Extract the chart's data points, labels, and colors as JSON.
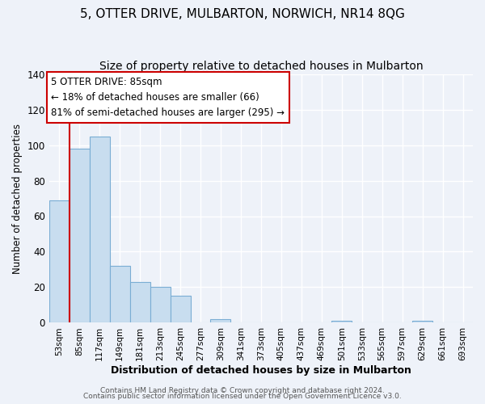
{
  "title": "5, OTTER DRIVE, MULBARTON, NORWICH, NR14 8QG",
  "subtitle": "Size of property relative to detached houses in Mulbarton",
  "xlabel": "Distribution of detached houses by size in Mulbarton",
  "ylabel": "Number of detached properties",
  "categories": [
    "53sqm",
    "85sqm",
    "117sqm",
    "149sqm",
    "181sqm",
    "213sqm",
    "245sqm",
    "277sqm",
    "309sqm",
    "341sqm",
    "373sqm",
    "405sqm",
    "437sqm",
    "469sqm",
    "501sqm",
    "533sqm",
    "565sqm",
    "597sqm",
    "629sqm",
    "661sqm",
    "693sqm"
  ],
  "values": [
    69,
    98,
    105,
    32,
    23,
    20,
    15,
    0,
    2,
    0,
    0,
    0,
    0,
    0,
    1,
    0,
    0,
    0,
    1,
    0,
    0
  ],
  "bar_color": "#c8ddef",
  "bar_edge_color": "#7aadd4",
  "redline_index": 1,
  "ylim": [
    0,
    140
  ],
  "annotation_lines": [
    "5 OTTER DRIVE: 85sqm",
    "← 18% of detached houses are smaller (66)",
    "81% of semi-detached houses are larger (295) →"
  ],
  "annotation_box_color": "#ffffff",
  "annotation_box_edge": "#cc0000",
  "redline_color": "#cc0000",
  "footer1": "Contains HM Land Registry data © Crown copyright and database right 2024.",
  "footer2": "Contains public sector information licensed under the Open Government Licence v3.0.",
  "background_color": "#eef2f9",
  "title_fontsize": 11,
  "subtitle_fontsize": 10,
  "xlabel_fontsize": 9,
  "ylabel_fontsize": 8.5,
  "tick_fontsize": 7.5,
  "annotation_fontsize": 8.5,
  "footer_fontsize": 6.5
}
